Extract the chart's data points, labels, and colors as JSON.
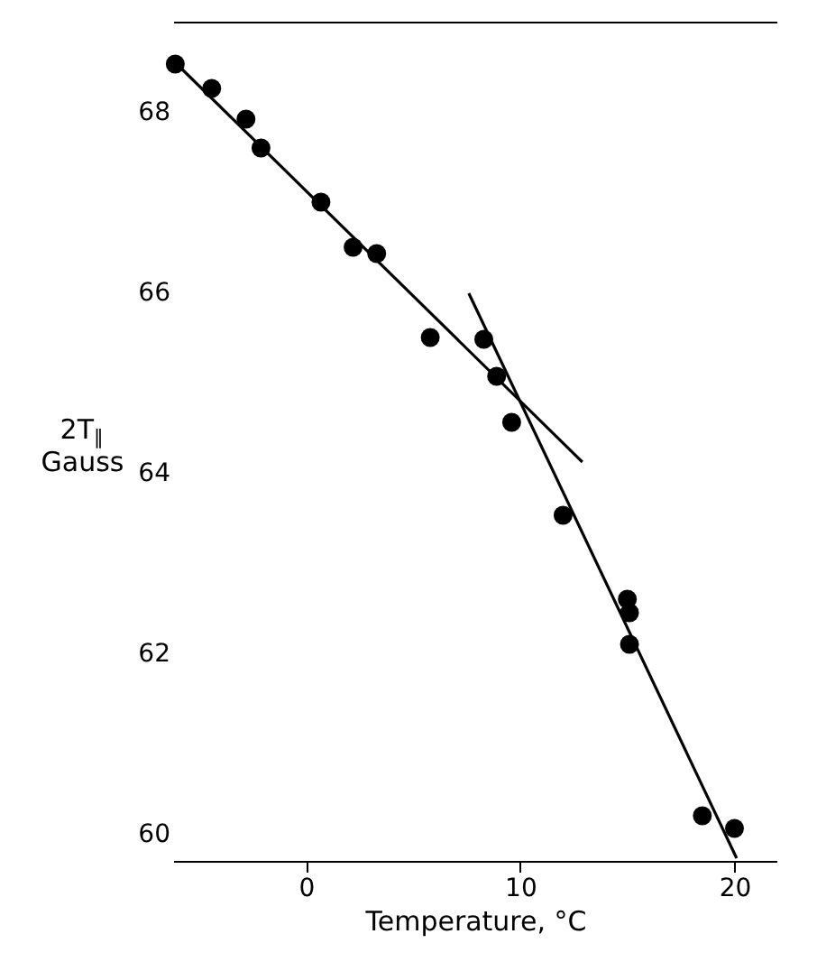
{
  "chart_data": {
    "type": "scatter",
    "xlabel": "Temperature, °C",
    "ylabel": "2T$_{∥}$\nGauss",
    "xlim": [
      -6.2,
      22
    ],
    "ylim": [
      59.7,
      69
    ],
    "xticks": [
      0,
      10,
      20
    ],
    "yticks": [
      60,
      62,
      64,
      66,
      68
    ],
    "grid": false,
    "series": [
      {
        "color": "#000000",
        "marker": "circle",
        "x": [
          -6.1,
          -4.4,
          -2.8,
          -2.1,
          0.7,
          2.2,
          3.3,
          5.8,
          8.3,
          8.9,
          9.6,
          12.0,
          15.0,
          15.1,
          15.1,
          18.5,
          20.0
        ],
        "values": [
          68.53,
          68.26,
          67.92,
          67.6,
          67.0,
          66.5,
          66.43,
          65.5,
          65.48,
          65.07,
          64.56,
          63.53,
          62.6,
          62.45,
          62.1,
          60.2,
          60.06
        ]
      },
      {
        "type": "line",
        "color": "#000000",
        "x": [
          -6.2,
          12.9
        ],
        "values": [
          68.57,
          64.12
        ]
      },
      {
        "type": "line",
        "color": "#000000",
        "x": [
          7.6,
          20.1
        ],
        "values": [
          65.99,
          59.73
        ]
      }
    ]
  }
}
